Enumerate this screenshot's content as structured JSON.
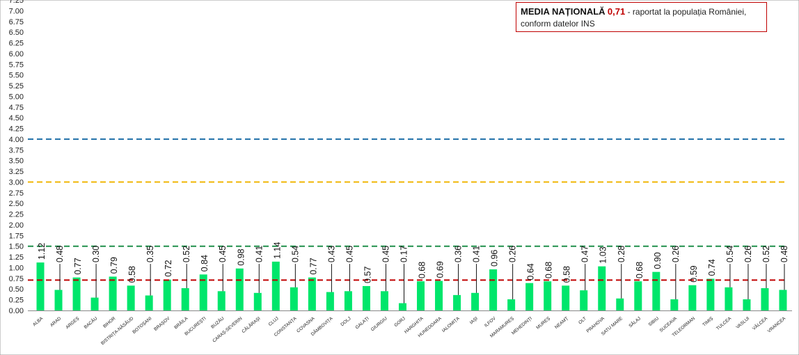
{
  "chart_data": {
    "type": "bar",
    "title": "",
    "xlabel": "",
    "ylabel": "",
    "ylim": [
      0,
      7.25
    ],
    "ytick_step": 0.25,
    "categories": [
      "ALBA",
      "ARAD",
      "ARGEȘ",
      "BACĂU",
      "BIHOR",
      "BISTRIȚA-NĂSĂUD",
      "BOTOȘANI",
      "BRAȘOV",
      "BRĂILA",
      "BUCUREȘTI",
      "BUZĂU",
      "CARAȘ-SEVERIN",
      "CĂLĂRAȘI",
      "CLUJ",
      "CONSTANȚA",
      "COVASNA",
      "DÂMBOVIȚA",
      "DOLJ",
      "GALAȚI",
      "GIURGIU",
      "GORJ",
      "HARGHITA",
      "HUNEDOARA",
      "IALOMIȚA",
      "IAȘI",
      "ILFOV",
      "MARAMUREȘ",
      "MEHEDINȚI",
      "MUREȘ",
      "NEAMȚ",
      "OLT",
      "PRAHOVA",
      "SATU MARE",
      "SĂLAJ",
      "SIBIU",
      "SUCEAVA",
      "TELEORMAN",
      "TIMIȘ",
      "TULCEA",
      "VASLUI",
      "VÂLCEA",
      "VRANCEA"
    ],
    "values": [
      1.12,
      0.48,
      0.77,
      0.3,
      0.79,
      0.58,
      0.35,
      0.72,
      0.52,
      0.84,
      0.45,
      0.98,
      0.41,
      1.14,
      0.54,
      0.77,
      0.43,
      0.45,
      0.57,
      0.45,
      0.17,
      0.68,
      0.69,
      0.36,
      0.41,
      0.96,
      0.26,
      0.64,
      0.68,
      0.58,
      0.47,
      1.03,
      0.28,
      0.68,
      0.9,
      0.26,
      0.59,
      0.74,
      0.54,
      0.26,
      0.52,
      0.48
    ],
    "value_labels": [
      "1.12",
      "0.48",
      "0.77",
      "0.30",
      "0.79",
      "0.58",
      "0.35",
      "0.72",
      "0.52",
      "0.84",
      "0.45",
      "0.98",
      "0.41",
      "1.14",
      "0.54",
      "0.77",
      "0.43",
      "0.45",
      "0.57",
      "0.45",
      "0.17",
      "0.68",
      "0.69",
      "0.36",
      "0.41",
      "0.96",
      "0.26",
      "0.64",
      "0.68",
      "0.58",
      "0.47",
      "1.03",
      "0.28",
      "0.68",
      "0.90",
      "0.26",
      "0.59",
      "0.74",
      "0.54",
      "0.26",
      "0.52",
      "0.48"
    ],
    "bar_color": "#00e66b",
    "reference_lines": [
      {
        "name": "media-nationala",
        "value": 0.71,
        "color": "#c00000"
      },
      {
        "name": "threshold-1.5",
        "value": 1.5,
        "color": "#1f8f4a"
      },
      {
        "name": "threshold-3",
        "value": 3.0,
        "color": "#f0b400"
      },
      {
        "name": "threshold-4",
        "value": 4.0,
        "color": "#1f6fa8"
      }
    ]
  },
  "legend": {
    "bold_label": "MEDIA NAȚIONALĂ",
    "value": "0,71",
    "rest": " - raportat la populația României,",
    "line2": "conform datelor INS"
  }
}
